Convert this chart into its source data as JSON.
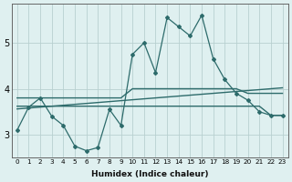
{
  "xlabel": "Humidex (Indice chaleur)",
  "x": [
    0,
    1,
    2,
    3,
    4,
    5,
    6,
    7,
    8,
    9,
    10,
    11,
    12,
    13,
    14,
    15,
    16,
    17,
    18,
    19,
    20,
    21,
    22,
    23
  ],
  "y_main": [
    3.1,
    3.6,
    3.8,
    3.4,
    3.2,
    2.75,
    2.65,
    2.72,
    3.55,
    3.2,
    4.75,
    5.0,
    4.35,
    5.55,
    5.35,
    5.15,
    5.6,
    4.65,
    4.2,
    3.9,
    3.75,
    3.5,
    3.42,
    3.42
  ],
  "y_flat": [
    3.62,
    3.62,
    3.62,
    3.62,
    3.62,
    3.62,
    3.62,
    3.62,
    3.62,
    3.62,
    3.62,
    3.62,
    3.62,
    3.62,
    3.62,
    3.62,
    3.62,
    3.62,
    3.62,
    3.62,
    3.62,
    3.62,
    3.42,
    3.42
  ],
  "y_step": [
    3.8,
    3.8,
    3.8,
    3.8,
    3.8,
    3.8,
    3.8,
    3.8,
    3.8,
    3.8,
    4.0,
    4.0,
    4.0,
    4.0,
    4.0,
    4.0,
    4.0,
    4.0,
    4.0,
    4.0,
    3.9,
    3.9,
    3.9,
    3.9
  ],
  "y_rise": [
    3.56,
    3.58,
    3.6,
    3.62,
    3.64,
    3.66,
    3.68,
    3.7,
    3.72,
    3.74,
    3.76,
    3.78,
    3.8,
    3.82,
    3.84,
    3.86,
    3.88,
    3.9,
    3.92,
    3.94,
    3.96,
    3.98,
    4.0,
    4.02
  ],
  "line_color": "#2d6b6b",
  "bg_color": "#dff0f0",
  "grid_color": "#b8d0d0",
  "ylim": [
    2.5,
    5.85
  ],
  "yticks": [
    3,
    4,
    5
  ],
  "xticks": [
    0,
    1,
    2,
    3,
    4,
    5,
    6,
    7,
    8,
    9,
    10,
    11,
    12,
    13,
    14,
    15,
    16,
    17,
    18,
    19,
    20,
    21,
    22,
    23
  ]
}
